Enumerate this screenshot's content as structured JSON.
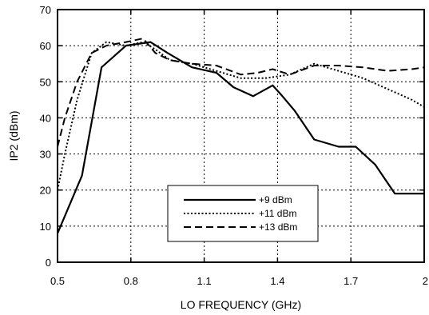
{
  "chart_data": {
    "type": "line",
    "title": "",
    "xlabel": "LO FREQUENCY (GHz)",
    "ylabel": "IP2 (dBm)",
    "xlim": [
      0.5,
      2.0
    ],
    "ylim": [
      0,
      70
    ],
    "xticks": [
      0.5,
      0.8,
      1.1,
      1.4,
      1.7,
      2.0
    ],
    "xtick_labels": [
      "0.5",
      "0.8",
      "1.1",
      "1.4",
      "1.7",
      "2"
    ],
    "yticks": [
      0,
      10,
      20,
      30,
      40,
      50,
      60,
      70
    ],
    "ytick_labels": [
      "0",
      "10",
      "20",
      "30",
      "40",
      "50",
      "60",
      "70"
    ],
    "grid": true,
    "legend_position": "lower-center",
    "series": [
      {
        "name": "+9 dBm",
        "style": "solid",
        "x": [
          0.5,
          0.6,
          0.68,
          0.78,
          0.88,
          0.95,
          1.05,
          1.15,
          1.22,
          1.3,
          1.38,
          1.42,
          1.47,
          1.55,
          1.65,
          1.72,
          1.8,
          1.88,
          2.0
        ],
        "y": [
          8,
          24,
          54,
          60,
          61,
          58,
          54,
          52.5,
          48.5,
          46,
          49,
          46,
          42,
          34,
          32,
          32,
          27,
          19,
          19
        ]
      },
      {
        "name": "+11 dBm",
        "style": "dotted",
        "x": [
          0.5,
          0.53,
          0.58,
          0.64,
          0.7,
          0.78,
          0.85,
          0.9,
          0.96,
          1.05,
          1.15,
          1.25,
          1.35,
          1.45,
          1.55,
          1.65,
          1.75,
          1.85,
          1.95,
          2.0
        ],
        "y": [
          20,
          30,
          45,
          58,
          61,
          60,
          61,
          59,
          56,
          55,
          53,
          51,
          51,
          52,
          55,
          53,
          51,
          48,
          45,
          43
        ]
      },
      {
        "name": "+13 dBm",
        "style": "dashed",
        "x": [
          0.5,
          0.53,
          0.58,
          0.64,
          0.7,
          0.78,
          0.85,
          0.9,
          0.96,
          1.05,
          1.15,
          1.25,
          1.32,
          1.38,
          1.45,
          1.55,
          1.65,
          1.75,
          1.85,
          1.95,
          2.0
        ],
        "y": [
          32,
          40,
          50,
          58,
          60,
          61,
          62,
          58,
          56,
          55,
          54.5,
          52,
          52.5,
          53.5,
          52,
          54.5,
          54.5,
          54,
          53,
          53.5,
          54
        ]
      }
    ]
  }
}
